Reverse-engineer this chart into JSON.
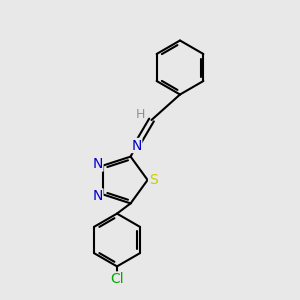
{
  "background_color": "#e8e8e8",
  "bond_color": "#000000",
  "bond_width": 1.5,
  "atom_colors": {
    "N": "#0000cc",
    "S": "#cccc00",
    "Cl": "#00aa00",
    "C": "#000000",
    "H": "#7a9a9a"
  },
  "font_size": 10,
  "fig_width": 3.0,
  "fig_height": 3.0,
  "xlim": [
    0,
    10
  ],
  "ylim": [
    0,
    10
  ]
}
